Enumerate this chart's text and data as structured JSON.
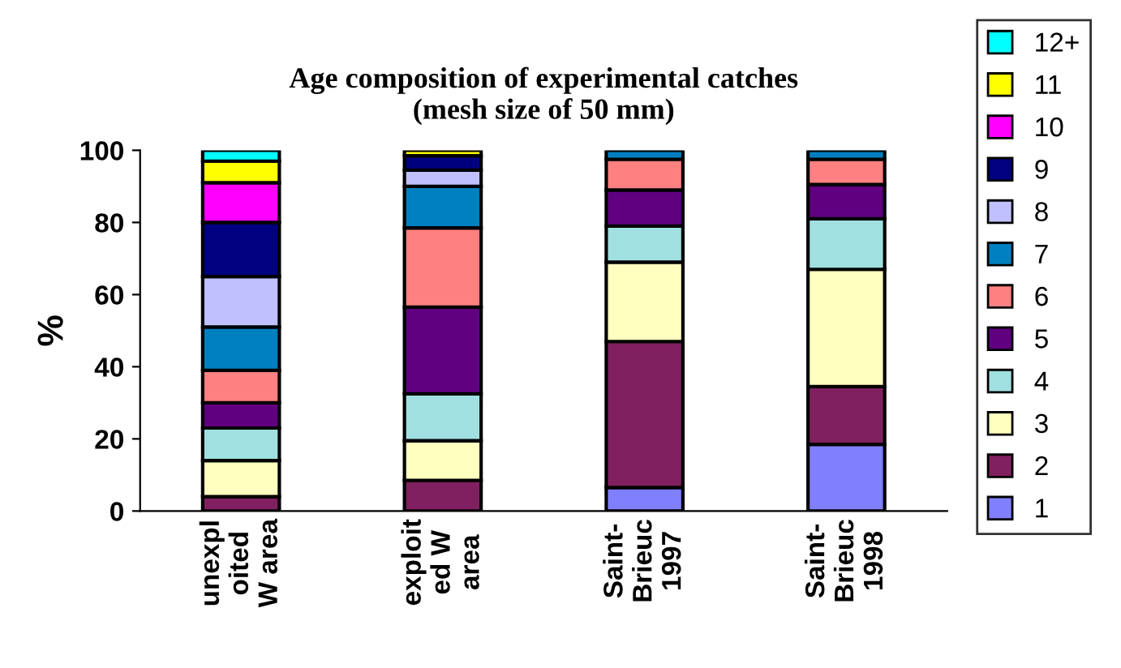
{
  "chart_data": {
    "type": "bar",
    "stacked": true,
    "title": "Age composition of experimental catches\n(mesh size of 50 mm)",
    "ylabel": "%",
    "categories": [
      "unexpl\noited\nW area",
      "exploit\ned W\narea",
      "Saint-\nBrieuc\n1997",
      "Saint-\nBrieuc\n1998"
    ],
    "ylim": [
      0,
      100
    ],
    "yticks": [
      0,
      20,
      40,
      60,
      80,
      100
    ],
    "grid": false,
    "legend": "right",
    "series": [
      {
        "name": "1",
        "color": "#8080ff",
        "values": [
          0,
          0,
          6.5,
          18.5
        ]
      },
      {
        "name": "2",
        "color": "#802060",
        "values": [
          4,
          8.5,
          40.5,
          16
        ]
      },
      {
        "name": "3",
        "color": "#ffffc0",
        "values": [
          10,
          11,
          22,
          32.5
        ]
      },
      {
        "name": "4",
        "color": "#a0e0e0",
        "values": [
          9,
          13,
          10,
          14
        ]
      },
      {
        "name": "5",
        "color": "#600080",
        "values": [
          7,
          24,
          10,
          9.5
        ]
      },
      {
        "name": "6",
        "color": "#ff8080",
        "values": [
          9,
          22,
          8.5,
          7
        ]
      },
      {
        "name": "7",
        "color": "#0080c0",
        "values": [
          12,
          11.5,
          2.5,
          2.5
        ]
      },
      {
        "name": "8",
        "color": "#c0c0ff",
        "values": [
          14,
          4.5,
          0,
          0
        ]
      },
      {
        "name": "9",
        "color": "#000080",
        "values": [
          15,
          4,
          0,
          0
        ]
      },
      {
        "name": "10",
        "color": "#ff00ff",
        "values": [
          11,
          null,
          0,
          0
        ]
      },
      {
        "name": "11",
        "color": "#ffff00",
        "values": [
          6,
          1.5,
          0,
          0
        ]
      },
      {
        "name": "12+",
        "color": "#00ffff",
        "values": [
          3,
          0,
          0,
          0
        ]
      }
    ]
  }
}
